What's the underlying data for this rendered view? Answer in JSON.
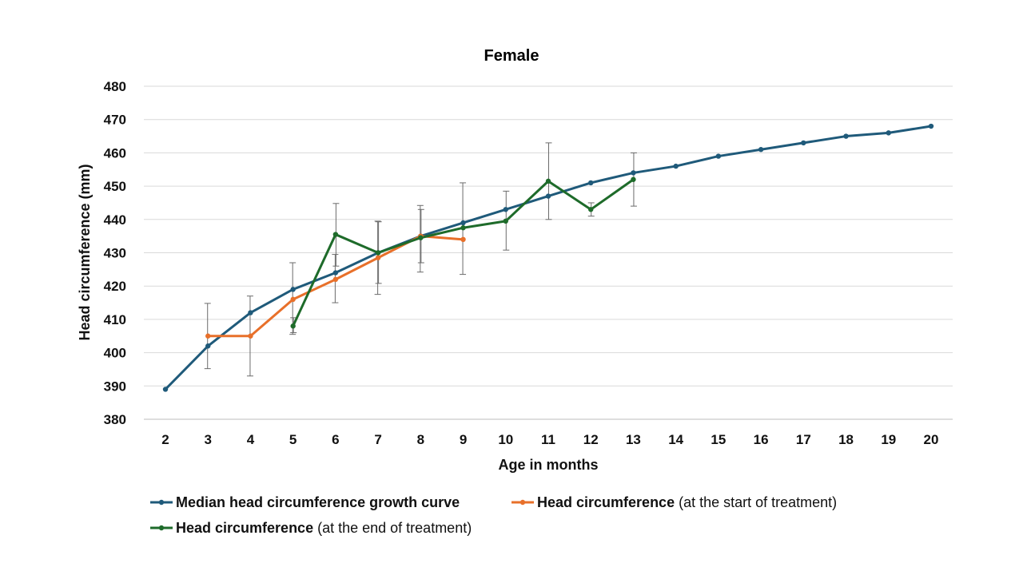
{
  "chart_data": {
    "type": "line",
    "title": "Female",
    "xlabel": "Age in months",
    "ylabel": "Head circumference (mm)",
    "xlim": [
      2,
      20
    ],
    "ylim": [
      380,
      480
    ],
    "x_ticks": [
      2,
      3,
      4,
      5,
      6,
      7,
      8,
      9,
      10,
      11,
      12,
      13,
      14,
      15,
      16,
      17,
      18,
      19,
      20
    ],
    "y_ticks": [
      380,
      390,
      400,
      410,
      420,
      430,
      440,
      450,
      460,
      470,
      480
    ],
    "grid": true,
    "legend_position": "bottom",
    "series": [
      {
        "name": "Median head circumference growth curve",
        "label_bold": "Median head circumference growth curve",
        "label_rest": "",
        "color": "#1f5a7a",
        "x": [
          2,
          3,
          4,
          5,
          6,
          7,
          8,
          9,
          10,
          11,
          12,
          13,
          14,
          15,
          16,
          17,
          18,
          19,
          20
        ],
        "y": [
          389,
          402,
          412,
          419,
          424,
          430,
          435,
          439,
          443,
          447,
          451,
          454,
          456,
          459,
          461,
          463,
          465,
          466,
          468
        ]
      },
      {
        "name": "Head circumference (at the start of treatment)",
        "label_bold": "Head circumference",
        "label_rest": " (at the start of treatment)",
        "color": "#e8702a",
        "x": [
          3,
          4,
          5,
          6,
          7,
          8,
          9
        ],
        "y": [
          405,
          405,
          416,
          422,
          428.5,
          435,
          434
        ],
        "errors": [
          {
            "x": 3,
            "low": 395.2,
            "high": 414.8
          },
          {
            "x": 4,
            "low": 393,
            "high": 417
          },
          {
            "x": 5,
            "low": 405.5,
            "high": 427
          },
          {
            "x": 6,
            "low": 415,
            "high": 429.5
          },
          {
            "x": 7,
            "low": 417.5,
            "high": 439.5
          },
          {
            "x": 8,
            "low": 424.2,
            "high": 444.2
          },
          {
            "x": 9,
            "low": 423.5,
            "high": 451
          }
        ]
      },
      {
        "name": "Head circumference (at the end of treatment)",
        "label_bold": "Head circumference",
        "label_rest": " (at the end of treatment)",
        "color": "#1e6b2a",
        "x": [
          5,
          6,
          7,
          8,
          9,
          10,
          11,
          12,
          13
        ],
        "y": [
          408,
          435.5,
          430,
          434.5,
          437.5,
          439.5,
          451.5,
          443,
          452
        ],
        "errors": [
          {
            "x": 5,
            "low": 406,
            "high": 410.5
          },
          {
            "x": 6,
            "low": 426,
            "high": 444.8
          },
          {
            "x": 7,
            "low": 420.8,
            "high": 439.3
          },
          {
            "x": 8,
            "low": 427,
            "high": 443
          },
          {
            "x": 10,
            "low": 430.8,
            "high": 448.5
          },
          {
            "x": 11,
            "low": 440,
            "high": 463
          },
          {
            "x": 12,
            "low": 441,
            "high": 445
          },
          {
            "x": 13,
            "low": 444,
            "high": 460
          }
        ]
      }
    ]
  }
}
